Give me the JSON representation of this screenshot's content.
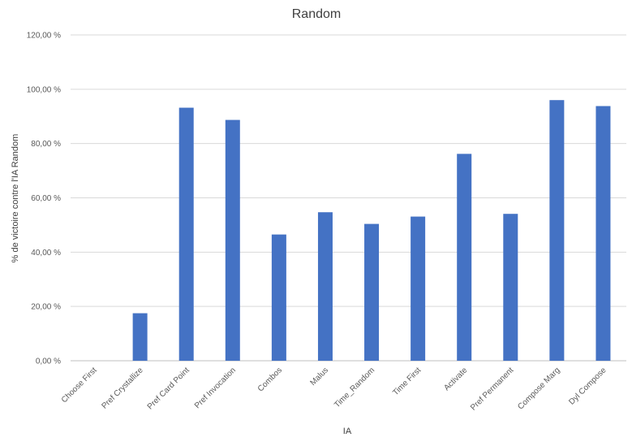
{
  "chart_data": {
    "type": "bar",
    "title": "Random",
    "xlabel": "IA",
    "ylabel": "% de victoire contre l'IA Random",
    "categories": [
      "Choose First",
      "Pref Crystallize",
      "Pref Card Point",
      "Pref Invocation",
      "Combos",
      "Malus",
      "Time_Random",
      "Time First",
      "Activate",
      "Pref Permanent",
      "Compose Marg",
      "Dyl Compose"
    ],
    "values": [
      0,
      17.5,
      93.2,
      88.7,
      46.5,
      54.7,
      50.4,
      53.1,
      76.2,
      54.1,
      96.0,
      93.8
    ],
    "ylim": [
      0,
      120
    ],
    "yticks": [
      "0,00 %",
      "20,00 %",
      "40,00 %",
      "60,00 %",
      "80,00 %",
      "100,00 %",
      "120,00 %"
    ],
    "grid": true,
    "color": "#4472c4"
  }
}
